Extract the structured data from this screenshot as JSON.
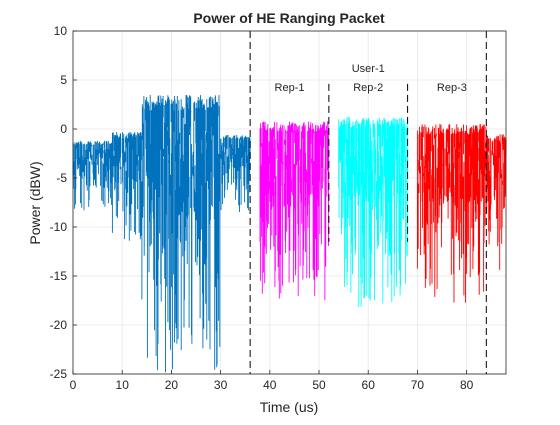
{
  "chart_data": {
    "type": "line",
    "title": "Power of HE Ranging Packet",
    "xlabel": "Time (us)",
    "ylabel": "Power (dBW)",
    "xlim": [
      0,
      88
    ],
    "ylim": [
      -25,
      10
    ],
    "x_ticks": [
      0,
      10,
      20,
      30,
      40,
      50,
      60,
      70,
      80
    ],
    "y_ticks": [
      -25,
      -20,
      -15,
      -10,
      -5,
      0,
      5,
      10
    ],
    "grid": true,
    "legend": "none",
    "boundaries": [
      {
        "x": 36,
        "style": "dashed",
        "extent": "full"
      },
      {
        "x": 52,
        "style": "dashed",
        "extent": "partial"
      },
      {
        "x": 68,
        "style": "dashed",
        "extent": "partial"
      },
      {
        "x": 84,
        "style": "dashed",
        "extent": "full"
      }
    ],
    "annotations": [
      {
        "text": "User-1",
        "x": 60,
        "y": 6.2
      },
      {
        "text": "Rep-1",
        "x": 44,
        "y": 4.3
      },
      {
        "text": "Rep-2",
        "x": 60,
        "y": 4.3
      },
      {
        "text": "Rep-3",
        "x": 77,
        "y": 4.3
      }
    ],
    "series": [
      {
        "x_range": [
          0,
          36
        ],
        "color": "#0072BD",
        "bands": [
          {
            "from": 0,
            "to": 8,
            "top": -1.2,
            "bottom": -8.3
          },
          {
            "from": 8,
            "to": 14,
            "top": -0.3,
            "bottom": -12
          },
          {
            "from": 14,
            "to": 30,
            "top": 3.5,
            "bottom": -25
          },
          {
            "from": 30,
            "to": 36,
            "top": -0.6,
            "bottom": -8.5
          }
        ]
      },
      {
        "x_range": [
          38,
          52
        ],
        "color": "#FF00FF",
        "bands": [
          {
            "from": 38,
            "to": 52,
            "top": 0.8,
            "bottom": -17.5
          }
        ]
      },
      {
        "x_range": [
          54,
          68
        ],
        "color": "#00FFFF",
        "bands": [
          {
            "from": 54,
            "to": 68,
            "top": 1.2,
            "bottom": -18.2
          }
        ]
      },
      {
        "x_range": [
          70,
          88
        ],
        "color": "#FF0000",
        "bands": [
          {
            "from": 70,
            "to": 84,
            "top": 0.5,
            "bottom": -17.8
          },
          {
            "from": 84,
            "to": 88,
            "top": -0.5,
            "bottom": -16
          }
        ]
      }
    ]
  }
}
